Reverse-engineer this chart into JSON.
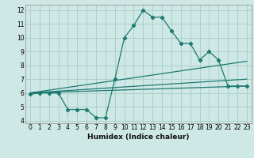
{
  "xlabel": "Humidex (Indice chaleur)",
  "xlim": [
    -0.5,
    23.5
  ],
  "ylim": [
    3.8,
    12.4
  ],
  "xticks": [
    0,
    1,
    2,
    3,
    4,
    5,
    6,
    7,
    8,
    9,
    10,
    11,
    12,
    13,
    14,
    15,
    16,
    17,
    18,
    19,
    20,
    21,
    22,
    23
  ],
  "yticks": [
    4,
    5,
    6,
    7,
    8,
    9,
    10,
    11,
    12
  ],
  "bg_color": "#cde8e5",
  "grid_color": "#aecfcc",
  "line_color": "#1e7a70",
  "line1_x": [
    0,
    1,
    2,
    3,
    4,
    5,
    6,
    7,
    8,
    9,
    10,
    11,
    12,
    13,
    14,
    15,
    16,
    17,
    18,
    19,
    20,
    21,
    22,
    23
  ],
  "line1_y": [
    5.9,
    6.0,
    6.0,
    6.0,
    4.8,
    4.8,
    4.8,
    4.2,
    4.2,
    7.0,
    10.0,
    10.9,
    12.0,
    11.5,
    11.5,
    10.5,
    9.6,
    9.6,
    8.4,
    9.0,
    8.4,
    6.5,
    6.5,
    6.5
  ],
  "line2_x": [
    0,
    23
  ],
  "line2_y": [
    6.0,
    8.3
  ],
  "line3_x": [
    0,
    23
  ],
  "line3_y": [
    6.0,
    7.0
  ],
  "line4_x": [
    0,
    23
  ],
  "line4_y": [
    6.0,
    6.5
  ]
}
